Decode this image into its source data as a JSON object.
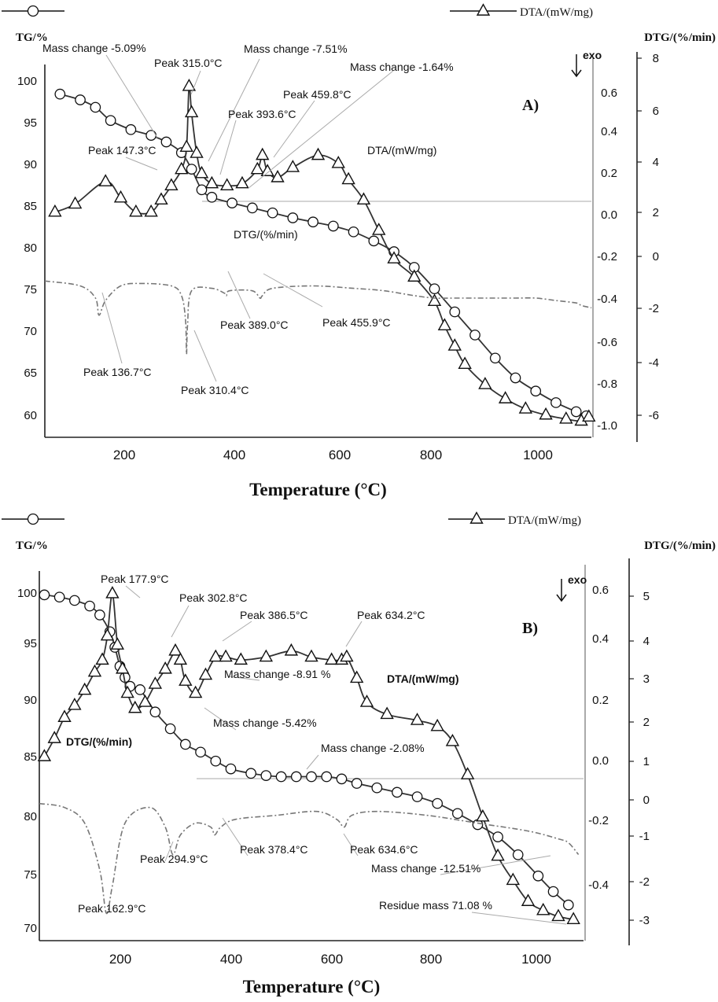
{
  "chart_data": [
    {
      "panel": "A)",
      "type": "line",
      "legend": {
        "tg_label": "",
        "dta_label": "DTA/(mW/mg)"
      },
      "axes": {
        "left_label": "TG/%",
        "right_label": "DTG/(%/min)",
        "dta_direction": "exo",
        "xlabel": "Temperature (°C)",
        "xlim": [
          30,
          1110
        ],
        "x_ticks": [
          "200",
          "400",
          "600",
          "800",
          "1000"
        ],
        "tg_ylim": [
          58,
          103
        ],
        "tg_ticks": [
          "100",
          "95",
          "90",
          "85",
          "80",
          "75",
          "70",
          "65",
          "60"
        ],
        "dta_ylim": [
          -1.05,
          0.78
        ],
        "dta_ticks": [
          "0.6",
          "0.4",
          "0.2",
          "0.0",
          "-0.2",
          "-0.4",
          "-0.6",
          "-0.8",
          "-1.0"
        ],
        "dtg_ylim": [
          -6.6,
          8.6
        ],
        "dtg_ticks": [
          "8",
          "6",
          "4",
          "2",
          "0",
          "-2",
          "-4",
          "-6"
        ]
      },
      "series": [
        {
          "name": "TG",
          "axis": "tg",
          "marker": "circle",
          "x": [
            60,
            100,
            130,
            160,
            200,
            240,
            270,
            300,
            320,
            340,
            360,
            400,
            440,
            480,
            520,
            560,
            600,
            640,
            680,
            720,
            760,
            800,
            840,
            880,
            920,
            960,
            1000,
            1040,
            1080,
            1100
          ],
          "y": [
            99.6,
            98.9,
            98.0,
            96.4,
            95.3,
            94.6,
            93.8,
            92.5,
            90.5,
            88.0,
            87.1,
            86.4,
            85.8,
            85.2,
            84.6,
            84.1,
            83.6,
            82.9,
            81.8,
            80.5,
            78.6,
            76.0,
            73.2,
            70.4,
            67.6,
            65.2,
            63.6,
            62.2,
            61.1,
            60.6
          ]
        },
        {
          "name": "DTA",
          "axis": "dta",
          "marker": "triangle",
          "x": [
            50,
            90,
            150,
            180,
            210,
            240,
            260,
            280,
            300,
            310,
            315,
            320,
            330,
            340,
            360,
            390,
            420,
            450,
            460,
            470,
            490,
            520,
            570,
            610,
            630,
            660,
            690,
            720,
            760,
            800,
            820,
            840,
            860,
            900,
            940,
            980,
            1020,
            1060,
            1090,
            1105
          ],
          "y": [
            0.06,
            0.1,
            0.21,
            0.13,
            0.06,
            0.06,
            0.12,
            0.19,
            0.27,
            0.38,
            0.68,
            0.55,
            0.35,
            0.25,
            0.2,
            0.19,
            0.2,
            0.27,
            0.34,
            0.26,
            0.23,
            0.28,
            0.34,
            0.3,
            0.22,
            0.12,
            -0.03,
            -0.17,
            -0.26,
            -0.38,
            -0.5,
            -0.6,
            -0.69,
            -0.79,
            -0.86,
            -0.91,
            -0.94,
            -0.96,
            -0.97,
            -0.95
          ]
        },
        {
          "name": "DTG",
          "axis": "dtg",
          "marker": "none",
          "x": [
            30,
            100,
            130,
            137,
            150,
            180,
            220,
            280,
            300,
            308,
            310,
            312,
            320,
            360,
            385,
            389,
            395,
            440,
            455,
            460,
            480,
            560,
            640,
            700,
            760,
            800,
            840,
            900,
            960,
            1000,
            1040,
            1080,
            1090,
            1110
          ],
          "y": [
            -0.2,
            -0.4,
            -0.9,
            -1.6,
            -1.0,
            -0.4,
            -0.3,
            -0.4,
            -0.8,
            -1.8,
            -3.2,
            -2.0,
            -0.6,
            -0.5,
            -0.7,
            -0.8,
            -0.6,
            -0.6,
            -0.9,
            -0.8,
            -0.5,
            -0.4,
            -0.5,
            -0.6,
            -0.8,
            -0.9,
            -0.9,
            -0.9,
            -0.9,
            -0.9,
            -1.0,
            -1.1,
            -1.2,
            -1.3
          ]
        }
      ],
      "annotations": [
        "Mass change -5.09%",
        "Peak 315.0°C",
        "Mass change -7.51%",
        "Mass change -1.64%",
        "Peak 459.8°C",
        "Peak 393.6°C",
        "Peak 147.3°C",
        "DTA/(mW/mg)",
        "DTG/(%/min)",
        "Peak 389.0°C",
        "Peak 455.9°C",
        "Peak 136.7°C",
        "Peak 310.4°C"
      ]
    },
    {
      "panel": "B)",
      "type": "line",
      "legend": {
        "tg_label": "",
        "dta_label": "DTA/(mW/mg)"
      },
      "axes": {
        "left_label": "TG/%",
        "right_label": "DTG/(%/min)",
        "dta_direction": "exo",
        "xlabel": "Temperature (°C)",
        "xlim": [
          30,
          1110
        ],
        "x_ticks": [
          "200",
          "400",
          "600",
          "800",
          "1000"
        ],
        "tg_ylim": [
          69,
          102
        ],
        "tg_ticks": [
          "100",
          "95",
          "90",
          "85",
          "80",
          "75",
          "70"
        ],
        "dta_ylim": [
          -0.55,
          0.67
        ],
        "dta_ticks": [
          "0.6",
          "0.4",
          "0.2",
          "0.0",
          "-0.2",
          "-0.4"
        ],
        "dtg_ylim": [
          -3.6,
          5.8
        ],
        "dtg_ticks": [
          "5",
          "4",
          "3",
          "2",
          "1",
          "0",
          "-1",
          "-2",
          "-3"
        ]
      },
      "series": [
        {
          "name": "TG",
          "axis": "tg",
          "marker": "circle",
          "x": [
            40,
            70,
            100,
            130,
            150,
            170,
            180,
            190,
            200,
            210,
            230,
            260,
            290,
            320,
            350,
            380,
            410,
            450,
            480,
            510,
            540,
            570,
            600,
            630,
            660,
            700,
            740,
            780,
            820,
            860,
            900,
            940,
            980,
            1020,
            1050,
            1080
          ],
          "y": [
            100,
            99.8,
            99.5,
            99.0,
            98.2,
            96.7,
            95.3,
            93.6,
            92.6,
            91.8,
            91.5,
            89.5,
            88.0,
            86.6,
            85.9,
            85.1,
            84.4,
            84.0,
            83.8,
            83.7,
            83.7,
            83.7,
            83.7,
            83.5,
            83.1,
            82.7,
            82.3,
            81.9,
            81.3,
            80.4,
            79.4,
            78.3,
            76.7,
            74.8,
            73.4,
            72.2
          ]
        },
        {
          "name": "DTA",
          "axis": "dta",
          "marker": "triangle",
          "x": [
            40,
            60,
            80,
            100,
            120,
            140,
            155,
            165,
            175,
            185,
            195,
            205,
            220,
            240,
            260,
            280,
            300,
            310,
            320,
            340,
            360,
            380,
            400,
            430,
            480,
            530,
            570,
            610,
            630,
            640,
            660,
            680,
            720,
            780,
            820,
            850,
            880,
            910,
            940,
            970,
            1000,
            1030,
            1060,
            1090
          ],
          "y": [
            0.06,
            0.12,
            0.19,
            0.23,
            0.28,
            0.34,
            0.38,
            0.46,
            0.6,
            0.43,
            0.35,
            0.27,
            0.22,
            0.24,
            0.3,
            0.35,
            0.41,
            0.38,
            0.31,
            0.27,
            0.33,
            0.39,
            0.39,
            0.38,
            0.39,
            0.41,
            0.39,
            0.38,
            0.38,
            0.39,
            0.32,
            0.24,
            0.2,
            0.18,
            0.16,
            0.11,
            0.0,
            -0.14,
            -0.27,
            -0.35,
            -0.42,
            -0.45,
            -0.47,
            -0.48
          ]
        },
        {
          "name": "DTG",
          "axis": "dtg",
          "marker": "none",
          "x": [
            30,
            80,
            120,
            150,
            163,
            175,
            200,
            250,
            280,
            295,
            310,
            340,
            370,
            378,
            390,
            420,
            500,
            580,
            620,
            635,
            650,
            700,
            800,
            900,
            1000,
            1060,
            1080,
            1100
          ],
          "y": [
            -0.1,
            -0.2,
            -0.6,
            -1.8,
            -2.9,
            -2.2,
            -0.6,
            -0.2,
            -0.7,
            -1.4,
            -0.9,
            -0.6,
            -0.7,
            -0.9,
            -0.7,
            -0.5,
            -0.4,
            -0.3,
            -0.5,
            -0.7,
            -0.4,
            -0.3,
            -0.4,
            -0.6,
            -0.8,
            -1.0,
            -1.1,
            -1.4
          ]
        }
      ],
      "annotations": [
        "Peak 177.9°C",
        "Peak 302.8°C",
        "Peak 386.5°C",
        "Peak 634.2°C",
        "Mass change -8.91 %",
        "DTA/(mW/mg)",
        "Mass change -5.42%",
        "Mass change -2.08%",
        "DTG/(%/min)",
        "Peak 294.9°C",
        "Peak 378.4°C",
        "Peak 634.6°C",
        "Mass change -12.51%",
        "Peak 162.9°C",
        "Residue mass 71.08 %"
      ]
    }
  ]
}
